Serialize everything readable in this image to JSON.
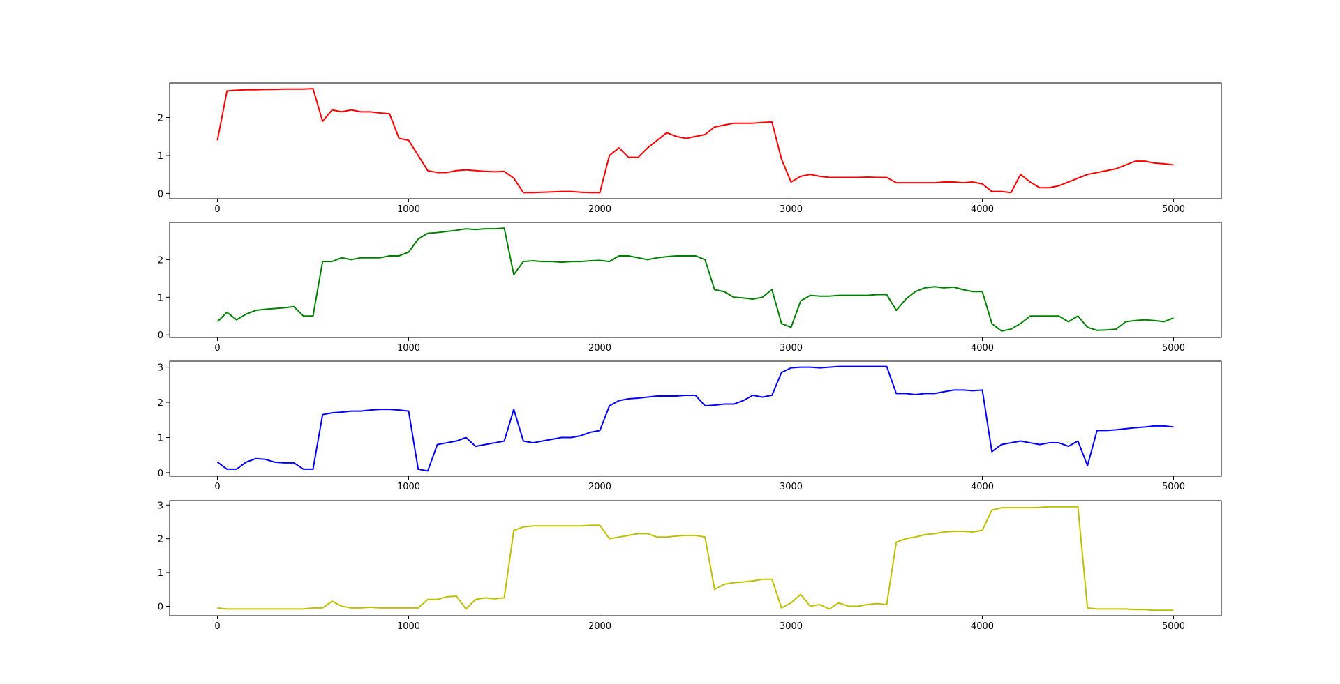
{
  "chart_data": [
    {
      "type": "line",
      "color": "#ff0000",
      "x": [
        0,
        50,
        100,
        150,
        200,
        250,
        300,
        350,
        400,
        450,
        500,
        550,
        600,
        650,
        700,
        750,
        800,
        850,
        900,
        950,
        1000,
        1050,
        1100,
        1150,
        1200,
        1250,
        1300,
        1350,
        1400,
        1450,
        1500,
        1550,
        1600,
        1650,
        1700,
        1750,
        1800,
        1850,
        1900,
        1950,
        2000,
        2050,
        2100,
        2150,
        2200,
        2250,
        2300,
        2350,
        2400,
        2450,
        2500,
        2550,
        2600,
        2650,
        2700,
        2750,
        2800,
        2850,
        2900,
        2950,
        3000,
        3050,
        3100,
        3150,
        3200,
        3250,
        3300,
        3350,
        3400,
        3450,
        3500,
        3550,
        3600,
        3650,
        3700,
        3750,
        3800,
        3850,
        3900,
        3950,
        4000,
        4050,
        4100,
        4150,
        4200,
        4250,
        4300,
        4350,
        4400,
        4450,
        4500,
        4550,
        4600,
        4650,
        4700,
        4750,
        4800,
        4850,
        4900,
        4950,
        5000
      ],
      "values": [
        1.4,
        2.7,
        2.72,
        2.73,
        2.73,
        2.74,
        2.74,
        2.75,
        2.75,
        2.75,
        2.76,
        1.9,
        2.2,
        2.15,
        2.2,
        2.15,
        2.15,
        2.12,
        2.1,
        1.45,
        1.4,
        1.0,
        0.6,
        0.55,
        0.55,
        0.6,
        0.62,
        0.6,
        0.58,
        0.57,
        0.58,
        0.4,
        0.02,
        0.02,
        0.03,
        0.04,
        0.05,
        0.05,
        0.03,
        0.02,
        0.02,
        1.0,
        1.2,
        0.95,
        0.95,
        1.2,
        1.4,
        1.6,
        1.5,
        1.45,
        1.5,
        1.55,
        1.75,
        1.8,
        1.85,
        1.85,
        1.85,
        1.87,
        1.88,
        0.9,
        0.3,
        0.45,
        0.5,
        0.45,
        0.42,
        0.42,
        0.42,
        0.42,
        0.43,
        0.42,
        0.42,
        0.28,
        0.28,
        0.28,
        0.28,
        0.28,
        0.3,
        0.3,
        0.28,
        0.3,
        0.25,
        0.05,
        0.05,
        0.02,
        0.5,
        0.3,
        0.15,
        0.15,
        0.2,
        0.3,
        0.4,
        0.5,
        0.55,
        0.6,
        0.65,
        0.75,
        0.85,
        0.85,
        0.8,
        0.78,
        0.75
      ],
      "xlim": [
        -250,
        5250
      ],
      "xticks": [
        0,
        1000,
        2000,
        3000,
        4000,
        5000
      ],
      "ylim": [
        -0.14,
        2.91
      ],
      "yticks": [
        0,
        1,
        2
      ]
    },
    {
      "type": "line",
      "color": "#008000",
      "x": [
        0,
        50,
        100,
        150,
        200,
        250,
        300,
        350,
        400,
        450,
        500,
        550,
        600,
        650,
        700,
        750,
        800,
        850,
        900,
        950,
        1000,
        1050,
        1100,
        1150,
        1200,
        1250,
        1300,
        1350,
        1400,
        1450,
        1500,
        1550,
        1600,
        1650,
        1700,
        1750,
        1800,
        1850,
        1900,
        1950,
        2000,
        2050,
        2100,
        2150,
        2200,
        2250,
        2300,
        2350,
        2400,
        2450,
        2500,
        2550,
        2600,
        2650,
        2700,
        2750,
        2800,
        2850,
        2900,
        2950,
        3000,
        3050,
        3100,
        3150,
        3200,
        3250,
        3300,
        3350,
        3400,
        3450,
        3500,
        3550,
        3600,
        3650,
        3700,
        3750,
        3800,
        3850,
        3900,
        3950,
        4000,
        4050,
        4100,
        4150,
        4200,
        4250,
        4300,
        4350,
        4400,
        4450,
        4500,
        4550,
        4600,
        4650,
        4700,
        4750,
        4800,
        4850,
        4900,
        4950,
        5000
      ],
      "values": [
        0.35,
        0.6,
        0.4,
        0.55,
        0.65,
        0.68,
        0.7,
        0.72,
        0.75,
        0.5,
        0.5,
        1.95,
        1.95,
        2.05,
        2.0,
        2.05,
        2.05,
        2.05,
        2.1,
        2.1,
        2.2,
        2.55,
        2.7,
        2.72,
        2.75,
        2.78,
        2.82,
        2.8,
        2.82,
        2.82,
        2.84,
        1.6,
        1.95,
        1.97,
        1.95,
        1.95,
        1.93,
        1.95,
        1.95,
        1.97,
        1.98,
        1.95,
        2.1,
        2.1,
        2.05,
        2.0,
        2.05,
        2.08,
        2.1,
        2.1,
        2.1,
        2.0,
        1.2,
        1.15,
        1.0,
        0.98,
        0.95,
        1.0,
        1.2,
        0.3,
        0.2,
        0.9,
        1.05,
        1.03,
        1.03,
        1.05,
        1.05,
        1.05,
        1.05,
        1.07,
        1.07,
        0.65,
        0.95,
        1.15,
        1.25,
        1.28,
        1.25,
        1.27,
        1.2,
        1.15,
        1.15,
        0.3,
        0.1,
        0.15,
        0.3,
        0.5,
        0.5,
        0.5,
        0.5,
        0.35,
        0.5,
        0.2,
        0.12,
        0.13,
        0.15,
        0.35,
        0.38,
        0.4,
        0.38,
        0.35,
        0.45
      ],
      "xlim": [
        -250,
        5250
      ],
      "xticks": [
        0,
        1000,
        2000,
        3000,
        4000,
        5000
      ],
      "ylim": [
        -0.07,
        2.99
      ],
      "yticks": [
        0,
        1,
        2
      ]
    },
    {
      "type": "line",
      "color": "#0000ff",
      "x": [
        0,
        50,
        100,
        150,
        200,
        250,
        300,
        350,
        400,
        450,
        500,
        550,
        600,
        650,
        700,
        750,
        800,
        850,
        900,
        950,
        1000,
        1050,
        1100,
        1150,
        1200,
        1250,
        1300,
        1350,
        1400,
        1450,
        1500,
        1550,
        1600,
        1650,
        1700,
        1750,
        1800,
        1850,
        1900,
        1950,
        2000,
        2050,
        2100,
        2150,
        2200,
        2250,
        2300,
        2350,
        2400,
        2450,
        2500,
        2550,
        2600,
        2650,
        2700,
        2750,
        2800,
        2850,
        2900,
        2950,
        3000,
        3050,
        3100,
        3150,
        3200,
        3250,
        3300,
        3350,
        3400,
        3450,
        3500,
        3550,
        3600,
        3650,
        3700,
        3750,
        3800,
        3850,
        3900,
        3950,
        4000,
        4050,
        4100,
        4150,
        4200,
        4250,
        4300,
        4350,
        4400,
        4450,
        4500,
        4550,
        4600,
        4650,
        4700,
        4750,
        4800,
        4850,
        4900,
        4950,
        5000
      ],
      "values": [
        0.3,
        0.1,
        0.1,
        0.3,
        0.4,
        0.38,
        0.3,
        0.28,
        0.28,
        0.1,
        0.1,
        1.65,
        1.7,
        1.72,
        1.75,
        1.75,
        1.78,
        1.8,
        1.8,
        1.78,
        1.75,
        0.1,
        0.05,
        0.8,
        0.85,
        0.9,
        1.0,
        0.75,
        0.8,
        0.85,
        0.9,
        1.8,
        0.9,
        0.85,
        0.9,
        0.95,
        1.0,
        1.0,
        1.05,
        1.15,
        1.2,
        1.9,
        2.05,
        2.1,
        2.12,
        2.15,
        2.18,
        2.18,
        2.18,
        2.2,
        2.2,
        1.9,
        1.92,
        1.95,
        1.95,
        2.05,
        2.2,
        2.15,
        2.2,
        2.85,
        2.98,
        3.0,
        3.0,
        2.98,
        3.0,
        3.02,
        3.02,
        3.02,
        3.02,
        3.02,
        3.02,
        2.25,
        2.25,
        2.22,
        2.25,
        2.25,
        2.3,
        2.35,
        2.35,
        2.33,
        2.35,
        0.6,
        0.8,
        0.85,
        0.9,
        0.85,
        0.8,
        0.85,
        0.85,
        0.75,
        0.9,
        0.2,
        1.2,
        1.2,
        1.22,
        1.25,
        1.28,
        1.3,
        1.33,
        1.33,
        1.3
      ],
      "xlim": [
        -250,
        5250
      ],
      "xticks": [
        0,
        1000,
        2000,
        3000,
        4000,
        5000
      ],
      "ylim": [
        -0.1,
        3.17
      ],
      "yticks": [
        0,
        1,
        2,
        3
      ]
    },
    {
      "type": "line",
      "color": "#bfbf00",
      "x": [
        0,
        50,
        100,
        150,
        200,
        250,
        300,
        350,
        400,
        450,
        500,
        550,
        600,
        650,
        700,
        750,
        800,
        850,
        900,
        950,
        1000,
        1050,
        1100,
        1150,
        1200,
        1250,
        1300,
        1350,
        1400,
        1450,
        1500,
        1550,
        1600,
        1650,
        1700,
        1750,
        1800,
        1850,
        1900,
        1950,
        2000,
        2050,
        2100,
        2150,
        2200,
        2250,
        2300,
        2350,
        2400,
        2450,
        2500,
        2550,
        2600,
        2650,
        2700,
        2750,
        2800,
        2850,
        2900,
        2950,
        3000,
        3050,
        3100,
        3150,
        3200,
        3250,
        3300,
        3350,
        3400,
        3450,
        3500,
        3550,
        3600,
        3650,
        3700,
        3750,
        3800,
        3850,
        3900,
        3950,
        4000,
        4050,
        4100,
        4150,
        4200,
        4250,
        4300,
        4350,
        4400,
        4450,
        4500,
        4550,
        4600,
        4650,
        4700,
        4750,
        4800,
        4850,
        4900,
        4950,
        5000
      ],
      "values": [
        -0.05,
        -0.08,
        -0.08,
        -0.08,
        -0.08,
        -0.08,
        -0.08,
        -0.08,
        -0.08,
        -0.08,
        -0.05,
        -0.05,
        0.15,
        0.0,
        -0.05,
        -0.05,
        -0.03,
        -0.05,
        -0.05,
        -0.05,
        -0.05,
        -0.05,
        0.2,
        0.2,
        0.28,
        0.3,
        -0.08,
        0.2,
        0.25,
        0.22,
        0.25,
        2.25,
        2.35,
        2.38,
        2.38,
        2.38,
        2.38,
        2.38,
        2.38,
        2.4,
        2.4,
        2.0,
        2.05,
        2.1,
        2.15,
        2.15,
        2.05,
        2.05,
        2.08,
        2.1,
        2.1,
        2.05,
        0.5,
        0.65,
        0.7,
        0.72,
        0.75,
        0.8,
        0.8,
        -0.05,
        0.1,
        0.35,
        0.0,
        0.05,
        -0.08,
        0.1,
        0.0,
        0.0,
        0.05,
        0.08,
        0.05,
        1.9,
        2.0,
        2.05,
        2.12,
        2.15,
        2.2,
        2.22,
        2.22,
        2.2,
        2.25,
        2.85,
        2.92,
        2.92,
        2.92,
        2.92,
        2.93,
        2.95,
        2.95,
        2.95,
        2.95,
        -0.05,
        -0.08,
        -0.08,
        -0.08,
        -0.08,
        -0.1,
        -0.1,
        -0.12,
        -0.12,
        -0.12
      ],
      "xlim": [
        -250,
        5250
      ],
      "xticks": [
        0,
        1000,
        2000,
        3000,
        4000,
        5000
      ],
      "ylim": [
        -0.28,
        3.13
      ],
      "yticks": [
        0,
        1,
        2,
        3
      ]
    }
  ]
}
